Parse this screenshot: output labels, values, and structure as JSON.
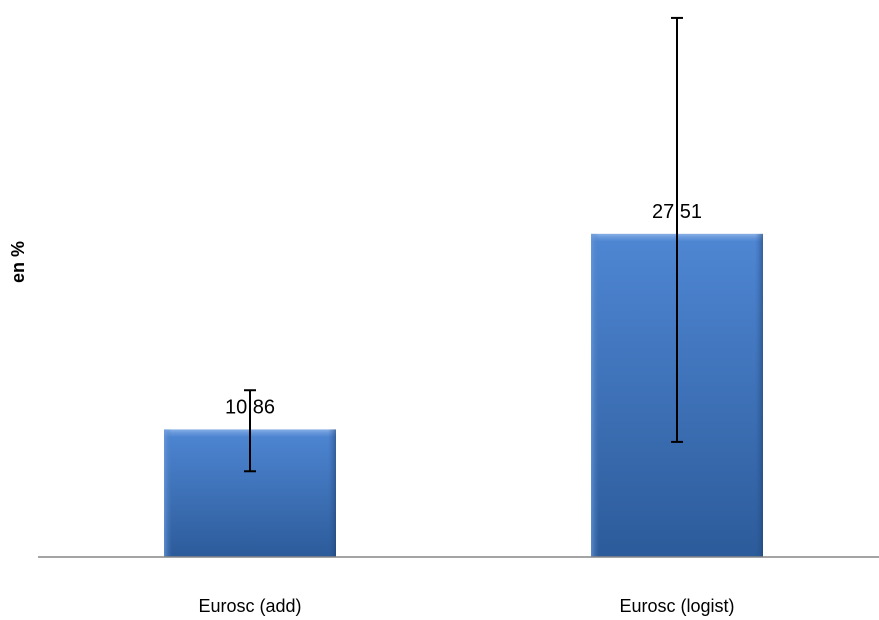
{
  "chart_data": {
    "type": "bar",
    "title": "",
    "xlabel": "",
    "ylabel": "en %",
    "categories": [
      "Eurosc (add)",
      "Eurosc (logist)"
    ],
    "values": [
      10.86,
      27.51
    ],
    "data_labels": [
      "10,86",
      "27,51"
    ],
    "error_bars": [
      {
        "low": 7.3,
        "high": 14.2
      },
      {
        "low": 9.8,
        "high": 45.9
      }
    ],
    "ylim": [
      0,
      47
    ],
    "grid": false,
    "legend": "none",
    "bar_color": "#4a7ebb",
    "axis_color": "#868686"
  }
}
